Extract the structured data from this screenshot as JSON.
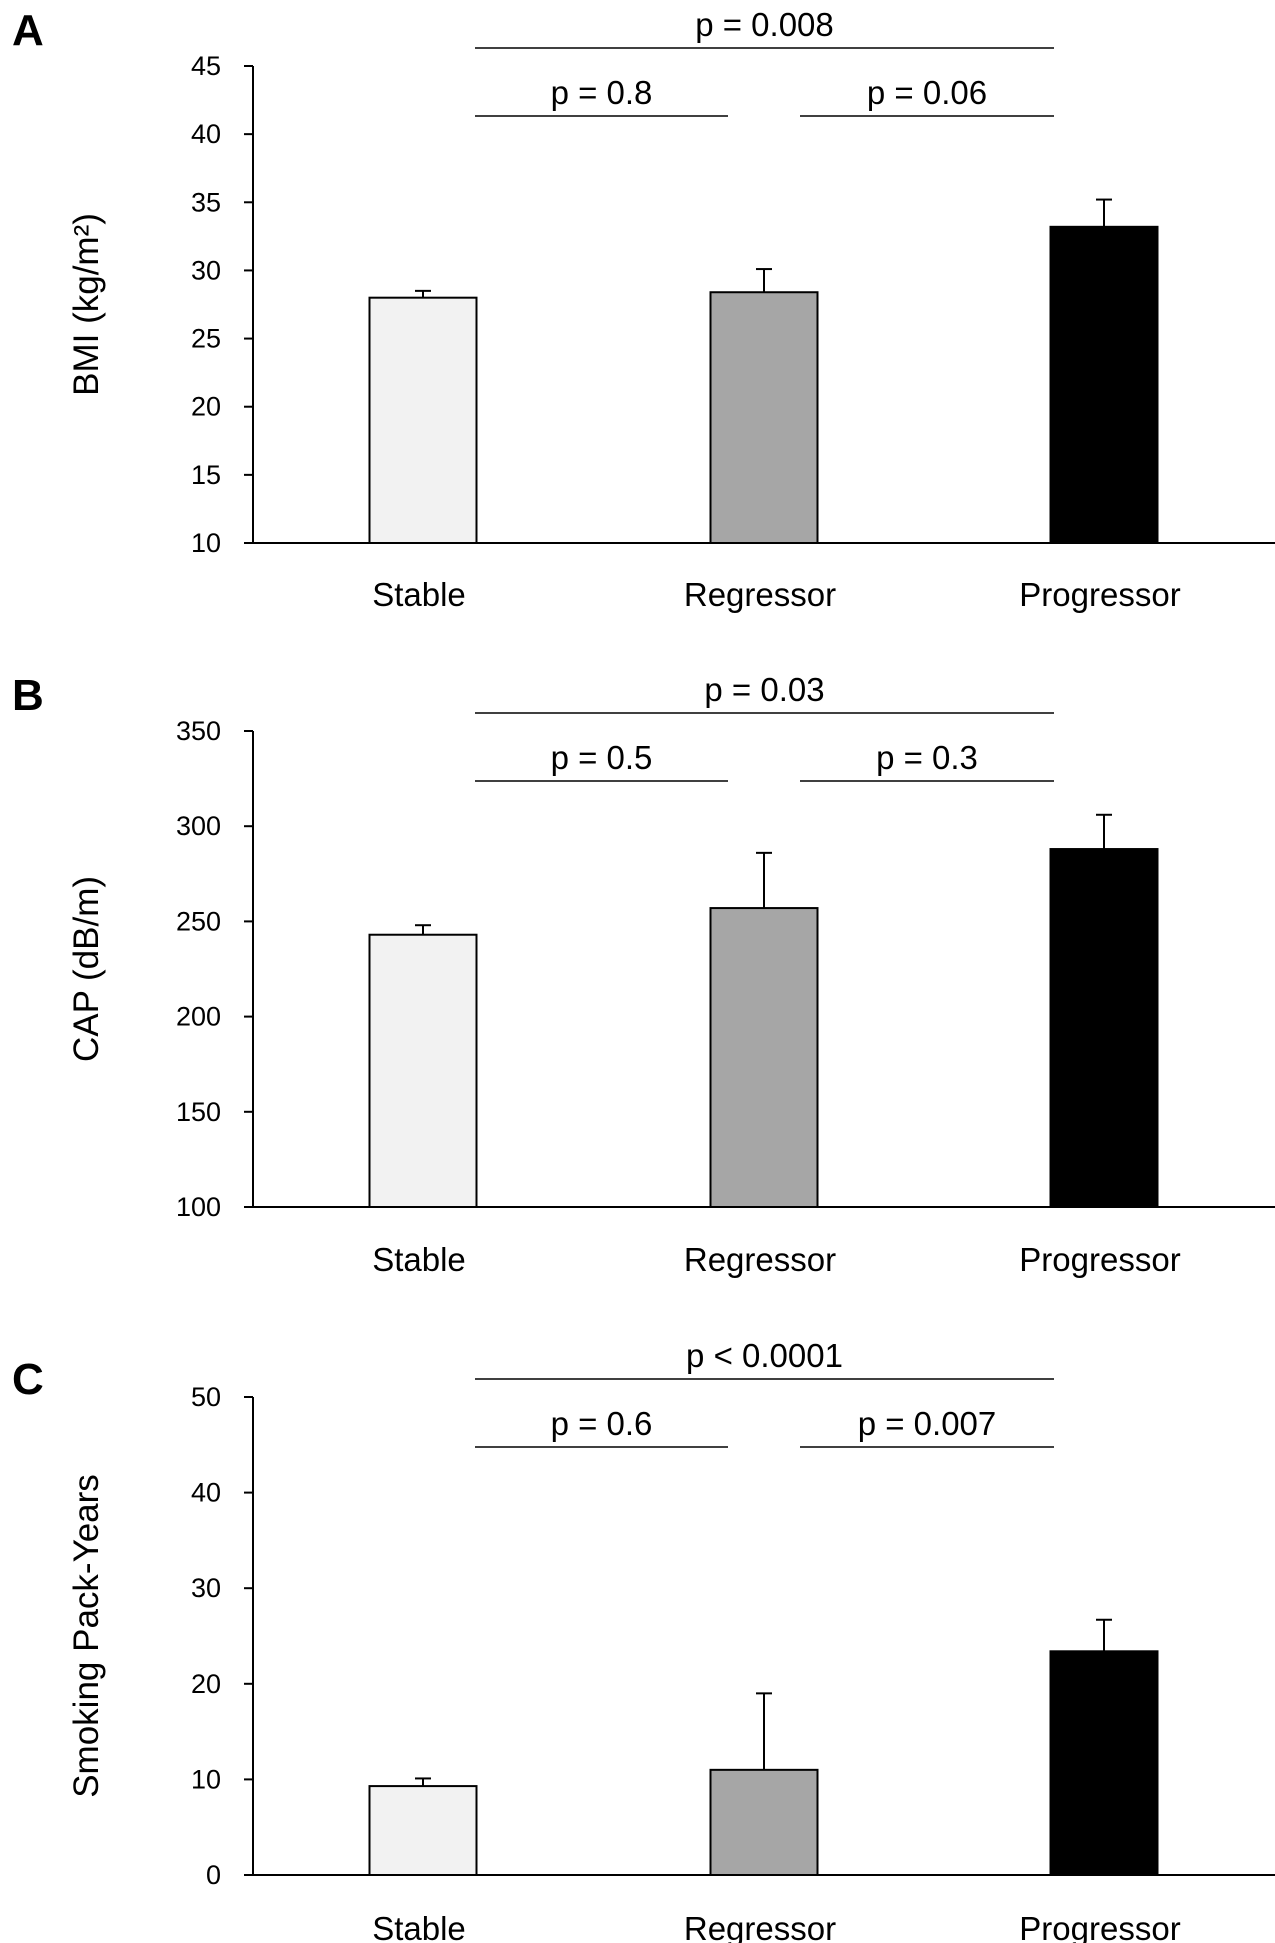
{
  "colors": {
    "stable": "#f2f2f2",
    "regressor": "#a6a6a6",
    "progressor": "#000000",
    "axis": "#000000"
  },
  "chart_data": [
    {
      "type": "bar",
      "panel_label": "A",
      "categories": [
        "Stable",
        "Regressor",
        "Progressor"
      ],
      "values": [
        28.0,
        28.4,
        33.2
      ],
      "errors": [
        0.5,
        1.7,
        2.0
      ],
      "ylabel": "BMI (kg/m²)",
      "ylim": [
        10,
        45
      ],
      "yticks": [
        10,
        15,
        20,
        25,
        30,
        35,
        40,
        45
      ],
      "grid": false,
      "comparisons": [
        {
          "from": 0,
          "to": 1,
          "label": "p = 0.8"
        },
        {
          "from": 1,
          "to": 2,
          "label": "p = 0.06"
        },
        {
          "from": 0,
          "to": 2,
          "label": "p = 0.008"
        }
      ]
    },
    {
      "type": "bar",
      "panel_label": "B",
      "categories": [
        "Stable",
        "Regressor",
        "Progressor"
      ],
      "values": [
        243,
        257,
        288
      ],
      "errors": [
        5,
        29,
        18
      ],
      "ylabel": "CAP (dB/m)",
      "ylim": [
        100,
        350
      ],
      "yticks": [
        100,
        150,
        200,
        250,
        300,
        350
      ],
      "grid": false,
      "comparisons": [
        {
          "from": 0,
          "to": 1,
          "label": "p = 0.5"
        },
        {
          "from": 1,
          "to": 2,
          "label": "p = 0.3"
        },
        {
          "from": 0,
          "to": 2,
          "label": "p = 0.03"
        }
      ]
    },
    {
      "type": "bar",
      "panel_label": "C",
      "categories": [
        "Stable",
        "Regressor",
        "Progressor"
      ],
      "values": [
        9.3,
        11.0,
        23.4
      ],
      "errors": [
        0.8,
        8.0,
        3.3
      ],
      "ylabel": "Smoking Pack-Years",
      "ylim": [
        0,
        50
      ],
      "yticks": [
        0,
        10,
        20,
        30,
        40,
        50
      ],
      "grid": false,
      "comparisons": [
        {
          "from": 0,
          "to": 1,
          "label": "p = 0.6"
        },
        {
          "from": 1,
          "to": 2,
          "label": "p = 0.007"
        },
        {
          "from": 0,
          "to": 2,
          "label": "p < 0.0001"
        }
      ]
    }
  ]
}
